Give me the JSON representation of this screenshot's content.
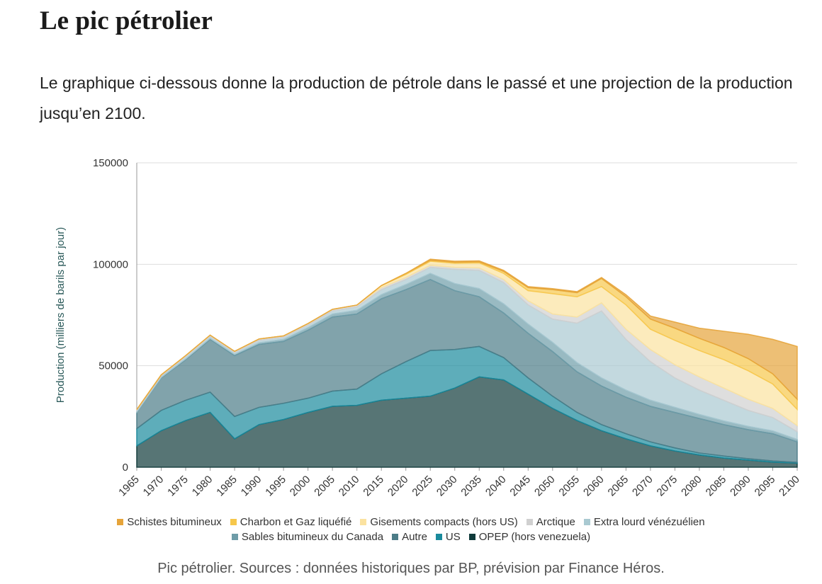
{
  "heading": "Le pic pétrolier",
  "paragraph": "Le graphique ci-dessous donne la production de pétrole dans le passé et une projection de la production jusqu’en 2100.",
  "caption": "Pic pétrolier. Sources : données historiques par BP, prévision par Finance Héros.",
  "chart_data": {
    "type": "stacked-area",
    "y_label": "Production (milliers de barils par jour)",
    "x": [
      1965,
      1970,
      1975,
      1980,
      1985,
      1990,
      1995,
      2000,
      2005,
      2010,
      2015,
      2020,
      2025,
      2030,
      2035,
      2040,
      2045,
      2050,
      2055,
      2060,
      2065,
      2070,
      2075,
      2080,
      2085,
      2090,
      2095,
      2100
    ],
    "xlim": [
      1965,
      2100
    ],
    "xticks": [
      1965,
      1970,
      1975,
      1980,
      1985,
      1990,
      1995,
      2000,
      2005,
      2010,
      2015,
      2020,
      2025,
      2030,
      2035,
      2040,
      2045,
      2050,
      2055,
      2060,
      2065,
      2070,
      2075,
      2080,
      2085,
      2090,
      2095,
      2100
    ],
    "ylim": [
      0,
      150000
    ],
    "yticks": [
      0,
      50000,
      100000,
      150000
    ],
    "grid": true,
    "series": [
      {
        "name": "OPEP (hors venezuela)",
        "color": "#0f3a3a",
        "values": [
          10500,
          18000,
          23000,
          27000,
          14000,
          21000,
          23500,
          27000,
          30000,
          30500,
          33000,
          34000,
          35000,
          39000,
          44500,
          43000,
          36000,
          29000,
          23000,
          18000,
          14000,
          10500,
          8000,
          6000,
          4500,
          3500,
          2500,
          2000
        ]
      },
      {
        "name": "US",
        "color": "#1a8a9c",
        "values": [
          8500,
          10000,
          10000,
          10000,
          11000,
          8500,
          8000,
          7000,
          7500,
          8000,
          13000,
          18000,
          22500,
          19000,
          15000,
          11000,
          8000,
          6000,
          4000,
          3000,
          2500,
          2000,
          1500,
          1000,
          1000,
          700,
          600,
          400
        ]
      },
      {
        "name": "Autre",
        "color": "#4c7c87",
        "values": [
          8000,
          16000,
          20000,
          26000,
          30000,
          31000,
          30500,
          33500,
          36500,
          37000,
          37000,
          35500,
          35000,
          29000,
          24500,
          22000,
          22000,
          22000,
          20000,
          19000,
          18000,
          17500,
          17500,
          17000,
          15500,
          14300,
          13400,
          10100
        ]
      },
      {
        "name": "Sables bitumineux du Canada",
        "color": "#6e9ca8",
        "values": [
          200,
          300,
          400,
          500,
          600,
          800,
          1000,
          1300,
          1500,
          1800,
          2000,
          2500,
          3000,
          3500,
          4000,
          4500,
          4500,
          4500,
          4500,
          4000,
          3500,
          3000,
          2500,
          2000,
          1800,
          1600,
          1400,
          1200
        ]
      },
      {
        "name": "Extra lourd vénézuélien",
        "color": "#a9c9d1",
        "values": [
          800,
          700,
          1100,
          1000,
          900,
          1200,
          1000,
          1200,
          1500,
          1700,
          2500,
          2500,
          3000,
          7000,
          9000,
          10500,
          9500,
          11500,
          19500,
          33000,
          25000,
          19000,
          14500,
          12000,
          10200,
          7900,
          6600,
          3800
        ]
      },
      {
        "name": "Arctique",
        "color": "#d0d0d0",
        "values": [
          400,
          500,
          500,
          600,
          600,
          700,
          700,
          800,
          800,
          900,
          1000,
          1000,
          1000,
          1000,
          1200,
          1500,
          2000,
          2500,
          3000,
          4000,
          5000,
          6000,
          6500,
          6500,
          6000,
          5500,
          4500,
          3000
        ]
      },
      {
        "name": "Gisements compacts (hors US)",
        "color": "#fbe2a0",
        "values": [
          0,
          0,
          0,
          0,
          0,
          0,
          0,
          0,
          0,
          0,
          1000,
          1500,
          2000,
          2000,
          2500,
          3000,
          5000,
          10000,
          10000,
          8000,
          12000,
          10000,
          12000,
          13000,
          14000,
          14000,
          12000,
          8000
        ]
      },
      {
        "name": "Charbon et Gaz liquéfié",
        "color": "#f6c74b",
        "values": [
          0,
          0,
          0,
          0,
          0,
          0,
          0,
          0,
          0,
          0,
          0,
          500,
          500,
          500,
          500,
          1000,
          1500,
          2000,
          2000,
          4000,
          4000,
          5000,
          6000,
          6000,
          6000,
          6000,
          5000,
          5000
        ]
      },
      {
        "name": "Schistes bitumineux",
        "color": "#e6a43a",
        "values": [
          0,
          0,
          0,
          0,
          0,
          0,
          0,
          0,
          0,
          0,
          0,
          0,
          500,
          500,
          500,
          500,
          500,
          500,
          500,
          500,
          1000,
          1500,
          3000,
          5000,
          8000,
          12000,
          17000,
          26000
        ]
      }
    ]
  }
}
